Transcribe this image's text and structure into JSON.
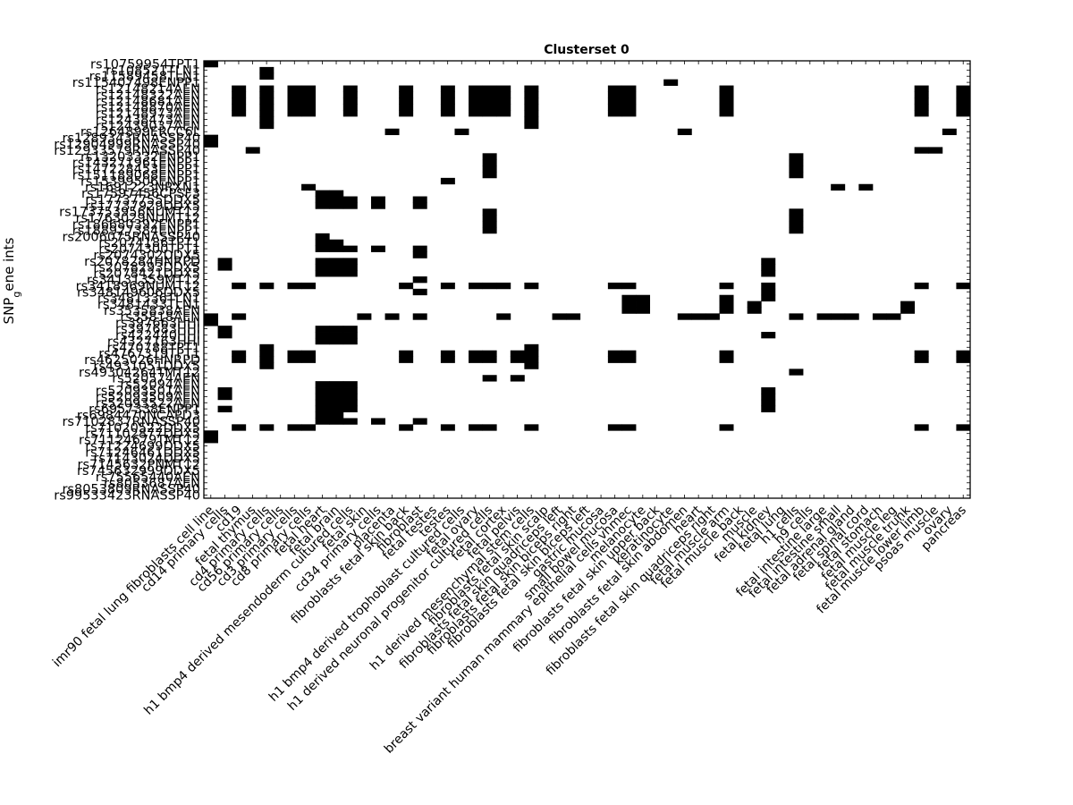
{
  "chart_data": {
    "type": "heatmap",
    "title": "Clusterset 0",
    "ylabel": "SNP_gene ints",
    "xlabel": "",
    "value_meaning": "black = 1 (present), white = 0 (absent)",
    "grid": false,
    "rows": [
      "rs10759954TPT1",
      "rs108521TLN1",
      "rs11589458TLN1",
      "rs115407498ENPP1",
      "rs12148214AEN",
      "rs12148322AEN",
      "rs12148681AEN",
      "rs12148870AEN",
      "rs12148973AEN",
      "rs12438473AEN",
      "rs12439037AEN",
      "rs1264899ERCC6L",
      "rs1289343RNASSP40",
      "rs12904999RNASSP40",
      "rs12933579RNASSP40",
      "rs13203332ENPP1",
      "rs143271961ENPP1",
      "rs147228453ENPP1",
      "rs151189068ENPP1",
      "rs15399506ENPP1",
      "rs1691223NRXN1",
      "rs17597456CPSF3",
      "rs17737755DDX5",
      "rs17737929DDX5",
      "rs173753956NUMT12",
      "rs1763029NUMT12",
      "rs186680392ENPP1",
      "rs188927384ENPP1",
      "rs2006075RNASSP40",
      "rs2074186TPT1",
      "rs2074300TPT1",
      "rs2074302DDX5",
      "rs2078284HNRPD",
      "rs2078293DDX5",
      "rs2078421DDX5",
      "rs34131359MT12",
      "rs3418969NUMT12",
      "rs348149606DDX5",
      "rs3481336TLN1",
      "rs3481433TLN1",
      "rs3535838AEN",
      "rs35818AEN",
      "rs397663HHI",
      "rs397683HHI",
      "rs422440HHI",
      "rs4327163HHI",
      "rs470788TPT1",
      "rs4767319TPT1",
      "rs4625026HNRPD",
      "rs4931051DDX5",
      "rs49304264TMT12",
      "rs520574AEN",
      "rs52094AEN",
      "rs52093501AEN",
      "rs52093509AEN",
      "rs52093522AEN",
      "rs6957338ENPP1",
      "rs6984470NCAPD3",
      "rs7102837RNASSP40",
      "rs71020522DDX5",
      "rs71102877DDX5",
      "rs71124679TMT12",
      "rs71224699DDX5",
      "rs71246461DDX5",
      "rs7143024DDX5",
      "rs7145632PNMT12",
      "rs745632999DDX5",
      "rs75565440AEN",
      "rs8053687AEN",
      "rs8053809RNASSP40",
      "rs99533423RNASSP40"
    ],
    "columns": [
      "imr90 fetal lung fibroblasts cell line",
      "cd14 primary cells",
      "cd19",
      "fetal thymus",
      "cd4 primary cells",
      "cd56 primary cells",
      "cd3 primary cells",
      "cd8 primary cells",
      "fetal heart",
      "fetal brain",
      "h1 bmp4 derived mesendoderm cultured cells",
      "fetal skin",
      "cd34 primary cells",
      "placenta",
      "fibroblasts fetal skin back",
      "fibroblast",
      "fetal testes",
      "testes",
      "h1 bmp4 derived trophoblast cultured cells",
      "fetal ovary",
      "h1 derived neuronal progenitor cultured cells",
      "fetal cortex",
      "fetal pelvis",
      "h1 derived mesenchymal stem cells",
      "fibroblasts fetal skin scalp",
      "fibroblasts fetal skin quadriceps left",
      "fibroblasts fetal skin biceps right",
      "fibroblasts fetal skin biceps left",
      "gastric mucosa",
      "small bowel mucosa",
      "breast variant human mammary epithelial cells vhmec",
      "melanocyte",
      "fibroblasts fetal skin upper back",
      "keratinocyte",
      "fibroblasts fetal skin abdomen",
      "heart",
      "fibroblasts fetal skin quadriceps right",
      "fetal muscle arm",
      "fetal muscle back",
      "muscle",
      "fetal kidney",
      "fetal lung",
      "h1 cells",
      "h9 cells",
      "fetal intestine large",
      "fetal intestine small",
      "fetal adrenal gland",
      "fetal spinal cord",
      "fetal stomach",
      "fetal muscle leg",
      "fetal muscle trunk",
      "fetal muscle lower limb",
      "psoas muscle",
      "ovary",
      "pancreas"
    ],
    "cells": [
      [
        0,
        0
      ],
      [
        1,
        4
      ],
      [
        2,
        4
      ],
      [
        3,
        33
      ],
      [
        4,
        2
      ],
      [
        4,
        4
      ],
      [
        4,
        6
      ],
      [
        4,
        7
      ],
      [
        4,
        10
      ],
      [
        4,
        14
      ],
      [
        4,
        17
      ],
      [
        4,
        19
      ],
      [
        4,
        20
      ],
      [
        4,
        21
      ],
      [
        4,
        23
      ],
      [
        4,
        29
      ],
      [
        4,
        30
      ],
      [
        4,
        37
      ],
      [
        4,
        51
      ],
      [
        4,
        54
      ],
      [
        5,
        2
      ],
      [
        5,
        4
      ],
      [
        5,
        6
      ],
      [
        5,
        7
      ],
      [
        5,
        10
      ],
      [
        5,
        14
      ],
      [
        5,
        17
      ],
      [
        5,
        19
      ],
      [
        5,
        20
      ],
      [
        5,
        21
      ],
      [
        5,
        23
      ],
      [
        5,
        29
      ],
      [
        5,
        30
      ],
      [
        5,
        37
      ],
      [
        5,
        51
      ],
      [
        5,
        54
      ],
      [
        6,
        2
      ],
      [
        6,
        4
      ],
      [
        6,
        6
      ],
      [
        6,
        7
      ],
      [
        6,
        10
      ],
      [
        6,
        14
      ],
      [
        6,
        17
      ],
      [
        6,
        19
      ],
      [
        6,
        20
      ],
      [
        6,
        21
      ],
      [
        6,
        23
      ],
      [
        6,
        29
      ],
      [
        6,
        30
      ],
      [
        6,
        37
      ],
      [
        6,
        51
      ],
      [
        6,
        54
      ],
      [
        7,
        2
      ],
      [
        7,
        4
      ],
      [
        7,
        6
      ],
      [
        7,
        7
      ],
      [
        7,
        10
      ],
      [
        7,
        14
      ],
      [
        7,
        17
      ],
      [
        7,
        19
      ],
      [
        7,
        20
      ],
      [
        7,
        21
      ],
      [
        7,
        23
      ],
      [
        7,
        29
      ],
      [
        7,
        30
      ],
      [
        7,
        37
      ],
      [
        7,
        51
      ],
      [
        7,
        54
      ],
      [
        8,
        2
      ],
      [
        8,
        4
      ],
      [
        8,
        6
      ],
      [
        8,
        7
      ],
      [
        8,
        10
      ],
      [
        8,
        14
      ],
      [
        8,
        17
      ],
      [
        8,
        19
      ],
      [
        8,
        20
      ],
      [
        8,
        21
      ],
      [
        8,
        23
      ],
      [
        8,
        29
      ],
      [
        8,
        30
      ],
      [
        8,
        37
      ],
      [
        8,
        51
      ],
      [
        8,
        54
      ],
      [
        9,
        4
      ],
      [
        9,
        23
      ],
      [
        10,
        4
      ],
      [
        10,
        23
      ],
      [
        11,
        13
      ],
      [
        11,
        18
      ],
      [
        11,
        34
      ],
      [
        11,
        53
      ],
      [
        12,
        0
      ],
      [
        13,
        0
      ],
      [
        14,
        3
      ],
      [
        14,
        51
      ],
      [
        14,
        52
      ],
      [
        15,
        20
      ],
      [
        15,
        42
      ],
      [
        16,
        20
      ],
      [
        16,
        42
      ],
      [
        17,
        20
      ],
      [
        17,
        42
      ],
      [
        18,
        20
      ],
      [
        18,
        42
      ],
      [
        19,
        17
      ],
      [
        20,
        7
      ],
      [
        20,
        45
      ],
      [
        20,
        47
      ],
      [
        21,
        8
      ],
      [
        21,
        9
      ],
      [
        22,
        8
      ],
      [
        22,
        9
      ],
      [
        22,
        10
      ],
      [
        22,
        12
      ],
      [
        22,
        15
      ],
      [
        23,
        8
      ],
      [
        23,
        9
      ],
      [
        23,
        10
      ],
      [
        23,
        12
      ],
      [
        23,
        15
      ],
      [
        24,
        20
      ],
      [
        24,
        42
      ],
      [
        25,
        20
      ],
      [
        25,
        42
      ],
      [
        26,
        20
      ],
      [
        26,
        42
      ],
      [
        27,
        20
      ],
      [
        27,
        42
      ],
      [
        28,
        8
      ],
      [
        29,
        8
      ],
      [
        29,
        9
      ],
      [
        30,
        8
      ],
      [
        30,
        9
      ],
      [
        30,
        10
      ],
      [
        30,
        12
      ],
      [
        30,
        15
      ],
      [
        31,
        15
      ],
      [
        32,
        1
      ],
      [
        32,
        8
      ],
      [
        32,
        9
      ],
      [
        32,
        10
      ],
      [
        32,
        40
      ],
      [
        33,
        1
      ],
      [
        33,
        8
      ],
      [
        33,
        9
      ],
      [
        33,
        10
      ],
      [
        33,
        40
      ],
      [
        34,
        8
      ],
      [
        34,
        9
      ],
      [
        34,
        10
      ],
      [
        34,
        40
      ],
      [
        35,
        15
      ],
      [
        36,
        2
      ],
      [
        36,
        4
      ],
      [
        36,
        6
      ],
      [
        36,
        7
      ],
      [
        36,
        14
      ],
      [
        36,
        17
      ],
      [
        36,
        19
      ],
      [
        36,
        20
      ],
      [
        36,
        21
      ],
      [
        36,
        23
      ],
      [
        36,
        29
      ],
      [
        36,
        30
      ],
      [
        36,
        37
      ],
      [
        36,
        40
      ],
      [
        36,
        51
      ],
      [
        36,
        54
      ],
      [
        37,
        15
      ],
      [
        37,
        40
      ],
      [
        38,
        30
      ],
      [
        38,
        31
      ],
      [
        38,
        37
      ],
      [
        38,
        40
      ],
      [
        39,
        30
      ],
      [
        39,
        31
      ],
      [
        39,
        37
      ],
      [
        39,
        39
      ],
      [
        39,
        50
      ],
      [
        40,
        30
      ],
      [
        40,
        31
      ],
      [
        40,
        37
      ],
      [
        40,
        39
      ],
      [
        40,
        50
      ],
      [
        41,
        0
      ],
      [
        41,
        2
      ],
      [
        41,
        11
      ],
      [
        41,
        13
      ],
      [
        41,
        15
      ],
      [
        41,
        21
      ],
      [
        41,
        25
      ],
      [
        41,
        26
      ],
      [
        41,
        34
      ],
      [
        41,
        35
      ],
      [
        41,
        36
      ],
      [
        41,
        42
      ],
      [
        41,
        44
      ],
      [
        41,
        45
      ],
      [
        41,
        46
      ],
      [
        41,
        48
      ],
      [
        41,
        49
      ],
      [
        42,
        0
      ],
      [
        43,
        1
      ],
      [
        43,
        8
      ],
      [
        43,
        9
      ],
      [
        43,
        10
      ],
      [
        44,
        1
      ],
      [
        44,
        8
      ],
      [
        44,
        9
      ],
      [
        44,
        10
      ],
      [
        44,
        40
      ],
      [
        45,
        8
      ],
      [
        45,
        9
      ],
      [
        45,
        10
      ],
      [
        46,
        4
      ],
      [
        46,
        23
      ],
      [
        47,
        2
      ],
      [
        47,
        4
      ],
      [
        47,
        6
      ],
      [
        47,
        7
      ],
      [
        47,
        14
      ],
      [
        47,
        17
      ],
      [
        47,
        19
      ],
      [
        47,
        20
      ],
      [
        47,
        22
      ],
      [
        47,
        23
      ],
      [
        47,
        29
      ],
      [
        47,
        30
      ],
      [
        47,
        37
      ],
      [
        47,
        51
      ],
      [
        47,
        54
      ],
      [
        48,
        2
      ],
      [
        48,
        4
      ],
      [
        48,
        6
      ],
      [
        48,
        7
      ],
      [
        48,
        14
      ],
      [
        48,
        17
      ],
      [
        48,
        19
      ],
      [
        48,
        20
      ],
      [
        48,
        22
      ],
      [
        48,
        23
      ],
      [
        48,
        29
      ],
      [
        48,
        30
      ],
      [
        48,
        37
      ],
      [
        48,
        51
      ],
      [
        48,
        54
      ],
      [
        49,
        4
      ],
      [
        49,
        23
      ],
      [
        50,
        42
      ],
      [
        51,
        20
      ],
      [
        51,
        22
      ],
      [
        52,
        8
      ],
      [
        52,
        9
      ],
      [
        52,
        10
      ],
      [
        53,
        1
      ],
      [
        53,
        8
      ],
      [
        53,
        9
      ],
      [
        53,
        10
      ],
      [
        53,
        40
      ],
      [
        54,
        1
      ],
      [
        54,
        8
      ],
      [
        54,
        9
      ],
      [
        54,
        10
      ],
      [
        54,
        40
      ],
      [
        55,
        8
      ],
      [
        55,
        9
      ],
      [
        55,
        10
      ],
      [
        55,
        40
      ],
      [
        56,
        1
      ],
      [
        56,
        8
      ],
      [
        56,
        9
      ],
      [
        56,
        10
      ],
      [
        56,
        40
      ],
      [
        57,
        8
      ],
      [
        57,
        9
      ],
      [
        58,
        8
      ],
      [
        58,
        9
      ],
      [
        58,
        10
      ],
      [
        58,
        12
      ],
      [
        58,
        15
      ],
      [
        59,
        2
      ],
      [
        59,
        4
      ],
      [
        59,
        6
      ],
      [
        59,
        7
      ],
      [
        59,
        14
      ],
      [
        59,
        17
      ],
      [
        59,
        19
      ],
      [
        59,
        20
      ],
      [
        59,
        23
      ],
      [
        59,
        29
      ],
      [
        59,
        30
      ],
      [
        59,
        37
      ],
      [
        59,
        51
      ],
      [
        59,
        54
      ],
      [
        60,
        0
      ],
      [
        61,
        0
      ]
    ]
  }
}
